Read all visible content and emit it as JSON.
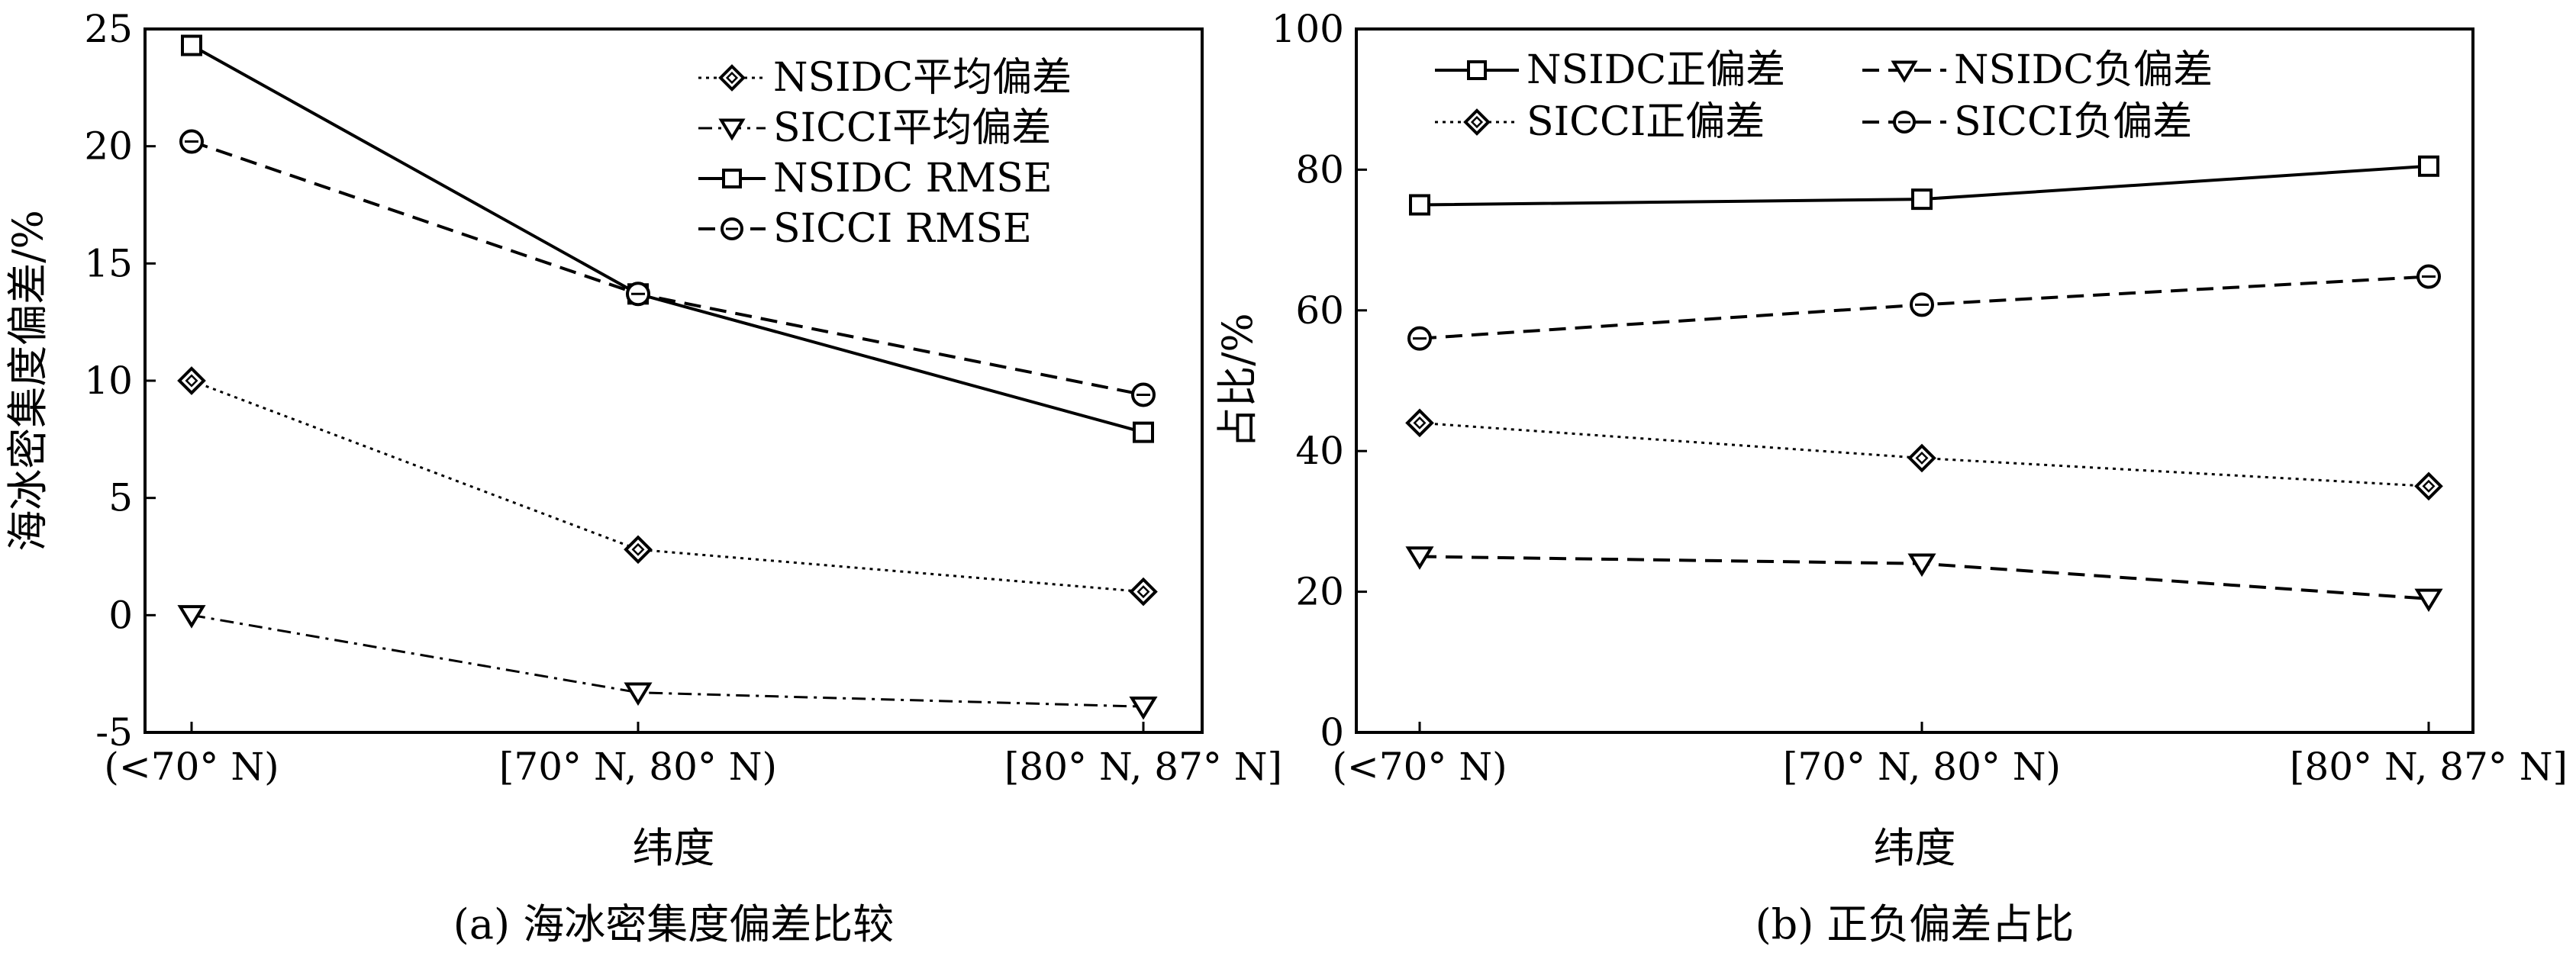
{
  "chart_data": [
    {
      "panel": "a",
      "type": "line",
      "caption": "(a) 海冰密集度偏差比较",
      "xlabel": "纬度",
      "ylabel": "海冰密集度偏差/%",
      "categories": [
        "(<70° N)",
        "[70° N, 80° N)",
        "[80° N, 87° N]"
      ],
      "ylim": [
        -5,
        25
      ],
      "yticks": [
        "-5",
        "0",
        "5",
        "10",
        "15",
        "20",
        "25"
      ],
      "legend_position": "top-right",
      "series": [
        {
          "name": "NSIDC平均偏差",
          "values": [
            10.0,
            2.8,
            1.0
          ],
          "marker": "diamond",
          "dash": "dotted"
        },
        {
          "name": "SICCI平均偏差",
          "values": [
            0.0,
            -3.3,
            -3.9
          ],
          "marker": "triangle-down",
          "dash": "dashdot"
        },
        {
          "name": "NSIDC RMSE",
          "values": [
            24.3,
            13.7,
            7.8
          ],
          "marker": "square",
          "dash": "solid"
        },
        {
          "name": "SICCI RMSE",
          "values": [
            20.2,
            13.7,
            9.4
          ],
          "marker": "circle",
          "dash": "dashed"
        }
      ]
    },
    {
      "panel": "b",
      "type": "line",
      "caption": "(b) 正负偏差占比",
      "xlabel": "纬度",
      "ylabel": "占比/%",
      "categories": [
        "(<70° N)",
        "[70° N, 80° N)",
        "[80° N, 87° N]"
      ],
      "ylim": [
        0,
        100
      ],
      "yticks": [
        "0",
        "20",
        "40",
        "60",
        "80",
        "100"
      ],
      "legend_position": "top",
      "series": [
        {
          "name": "NSIDC正偏差",
          "values": [
            75.0,
            75.8,
            80.5
          ],
          "marker": "square",
          "dash": "solid"
        },
        {
          "name": "NSIDC负偏差",
          "values": [
            25.0,
            24.0,
            19.0
          ],
          "marker": "triangle-down",
          "dash": "dashed"
        },
        {
          "name": "SICCI正偏差",
          "values": [
            44.0,
            39.0,
            35.0
          ],
          "marker": "diamond",
          "dash": "dotted"
        },
        {
          "name": "SICCI负偏差",
          "values": [
            56.0,
            60.8,
            64.8
          ],
          "marker": "circle",
          "dash": "dashed"
        }
      ]
    }
  ]
}
